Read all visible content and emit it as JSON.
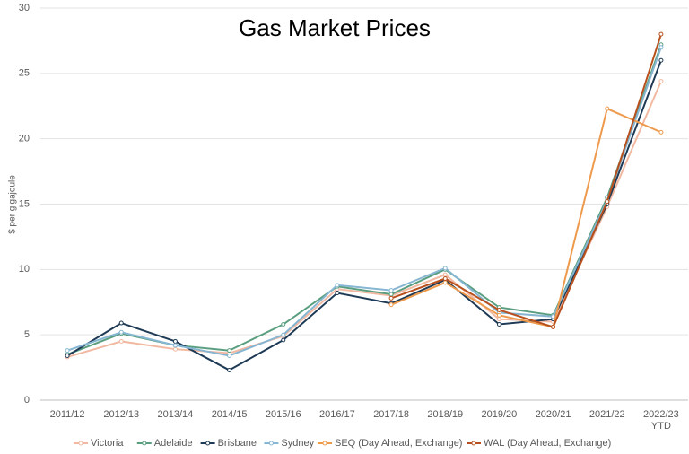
{
  "chart_data": {
    "type": "line",
    "title": "Gas Market Prices",
    "y_label": "$ per gigajoule",
    "categories": [
      "2011/12",
      "2012/13",
      "2013/14",
      "2014/15",
      "2015/16",
      "2016/17",
      "2017/18",
      "2018/19",
      "2019/20",
      "2020/21",
      "2021/22",
      "2022/23 YTD"
    ],
    "series": [
      {
        "name": "Victoria",
        "color": "#f2b9a2",
        "values": [
          3.3,
          4.5,
          3.9,
          3.6,
          4.9,
          8.5,
          8.0,
          9.6,
          6.2,
          6.0,
          14.8,
          24.4
        ]
      },
      {
        "name": "Adelaide",
        "color": "#5a9e80",
        "values": [
          3.5,
          5.1,
          4.2,
          3.8,
          5.8,
          8.7,
          8.1,
          10.0,
          7.1,
          6.5,
          15.5,
          27.2
        ]
      },
      {
        "name": "Brisbane",
        "color": "#1e3a55",
        "values": [
          3.4,
          5.9,
          4.5,
          2.3,
          4.6,
          8.2,
          7.4,
          9.2,
          5.8,
          6.2,
          15.0,
          26.0
        ]
      },
      {
        "name": "Sydney",
        "color": "#86b6d2",
        "values": [
          3.8,
          5.2,
          4.2,
          3.4,
          5.0,
          8.8,
          8.4,
          10.1,
          6.7,
          6.4,
          15.3,
          27.0
        ]
      },
      {
        "name": "SEQ (Day Ahead, Exchange)",
        "color": "#ee9a4c",
        "values": [
          null,
          null,
          null,
          null,
          null,
          null,
          7.3,
          9.0,
          6.5,
          5.6,
          22.3,
          20.5
        ]
      },
      {
        "name": "WAL (Day Ahead, Exchange)",
        "color": "#b8501e",
        "values": [
          null,
          null,
          null,
          null,
          null,
          null,
          7.8,
          9.3,
          6.9,
          5.6,
          15.2,
          28.0
        ]
      }
    ],
    "ylim": [
      0,
      30
    ],
    "yticks": [
      0,
      5,
      10,
      15,
      20,
      25,
      30
    ],
    "grid": true,
    "legend": "bottom"
  }
}
